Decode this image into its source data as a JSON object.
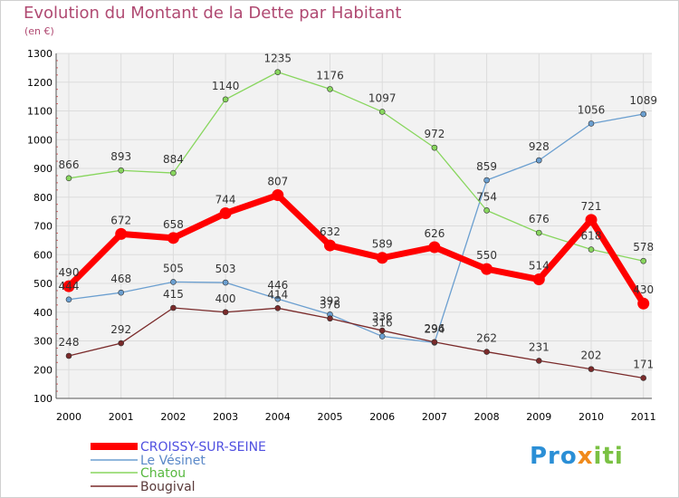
{
  "header": {
    "title": "Evolution du Montant de la Dette par Habitant",
    "subtitle": "(en €)"
  },
  "brand": {
    "text": "Proxiti",
    "colors": [
      "#2b8fd6",
      "#f08a1c",
      "#7ac143"
    ]
  },
  "chart_data": {
    "type": "line",
    "title": "Evolution du Montant de la Dette par Habitant",
    "subtitle": "(en €)",
    "x": [
      "2000",
      "2001",
      "2002",
      "2003",
      "2004",
      "2005",
      "2006",
      "2007",
      "2008",
      "2009",
      "2010",
      "2011"
    ],
    "ylim": [
      100,
      1300
    ],
    "yticks": [
      "100",
      "200",
      "300",
      "400",
      "500",
      "600",
      "700",
      "800",
      "900",
      "1000",
      "1100",
      "1200",
      "1300"
    ],
    "grid": true,
    "legend_position": "bottom-left",
    "series": [
      {
        "name": "CROISSY-SUR-SEINE",
        "color": "#ff0000",
        "values": [
          490,
          672,
          658,
          744,
          807,
          632,
          589,
          626,
          550,
          514,
          721,
          430
        ]
      },
      {
        "name": "Le Vésinet",
        "color": "#6b9fd0",
        "values": [
          444,
          468,
          505,
          503,
          446,
          392,
          316,
          294,
          859,
          928,
          1056,
          1089
        ]
      },
      {
        "name": "Chatou",
        "color": "#88d65e",
        "values": [
          866,
          893,
          884,
          1140,
          1235,
          1176,
          1097,
          972,
          754,
          676,
          618,
          578
        ]
      },
      {
        "name": "Bougival",
        "color": "#7a2a2a",
        "values": [
          248,
          292,
          415,
          400,
          414,
          378,
          336,
          296,
          262,
          231,
          202,
          171
        ]
      }
    ]
  }
}
